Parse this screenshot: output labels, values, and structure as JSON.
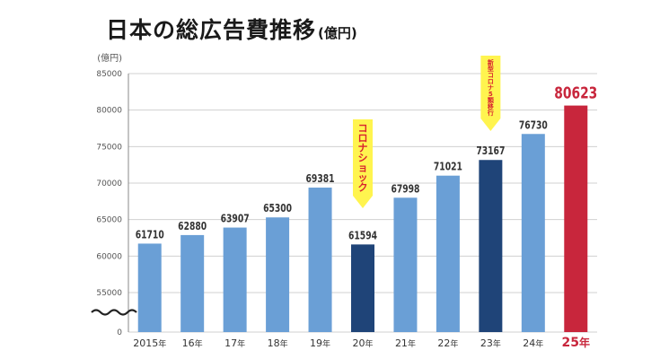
{
  "chart_data": {
    "type": "bar",
    "title": "日本の総広告費推移",
    "title_unit": "(億円)",
    "ylabel": "(億円)",
    "xlabel": "",
    "yticks": [
      0,
      55000,
      60000,
      65000,
      70000,
      75000,
      80000,
      85000
    ],
    "ylim": [
      0,
      85000
    ],
    "broken_axis_between": [
      0,
      55000
    ],
    "grid": true,
    "categories": [
      "2015",
      "16",
      "17",
      "18",
      "19",
      "20",
      "21",
      "22",
      "23",
      "24",
      "25"
    ],
    "category_suffix": "年",
    "values": [
      61710,
      62880,
      63907,
      65300,
      69381,
      61594,
      67998,
      71021,
      73167,
      76730,
      80623
    ],
    "highlight": {
      "dark": [
        "20",
        "23"
      ],
      "red": [
        "25"
      ]
    },
    "annotations": [
      {
        "category": "20",
        "text": "コロナショック"
      },
      {
        "category": "23",
        "text": "新型コロナ5類移行"
      }
    ]
  },
  "colors": {
    "bar": "#6a9fd6",
    "bar_dark": "#1f4478",
    "bar_red": "#c8263c",
    "callout": "#fff44f",
    "callout_text": "#d9232e",
    "grid": "#d0d0d0",
    "text": "#333333"
  }
}
